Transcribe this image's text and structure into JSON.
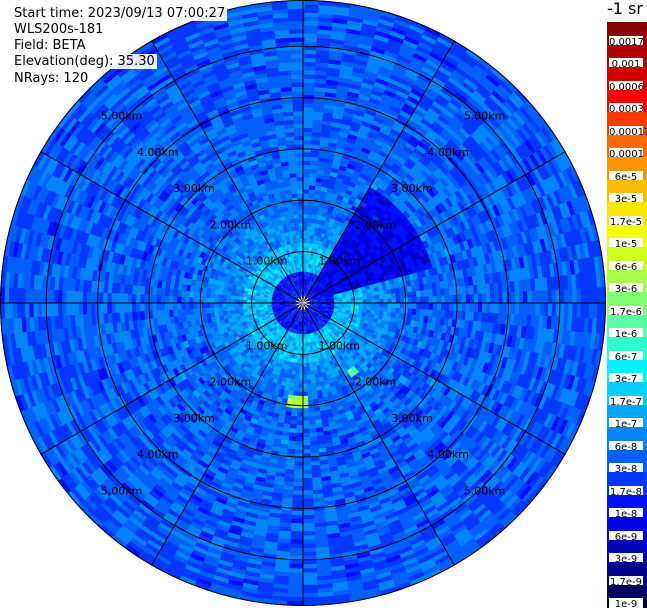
{
  "header": {
    "start_time": "Start time: 2023/09/13 07:00:27",
    "instrument": "WLS200s-181",
    "field": "Field: BETA",
    "elevation": "Elevation(deg): 35.30",
    "nrays": "NRays: 120"
  },
  "chart_data": {
    "type": "heatmap",
    "subtype": "polar-ppi",
    "rays": 120,
    "range_rings_km": [
      1,
      2,
      3,
      4,
      5
    ],
    "ring_labels": [
      "1.00km",
      "2.00km",
      "3.00km",
      "4.00km",
      "5.00km"
    ],
    "max_range_km": 5.9,
    "azimuth_spokes_deg": [
      0,
      30,
      60,
      90,
      120,
      150,
      180,
      210,
      240,
      270,
      300,
      330
    ],
    "colorbar": {
      "unit": "-1 sr",
      "levels": [
        {
          "value": "0.0017",
          "color": "#8b0000"
        },
        {
          "value": "0.001",
          "color": "#b00000"
        },
        {
          "value": "0.0006",
          "color": "#d40000"
        },
        {
          "value": "0.0003",
          "color": "#ff0000"
        },
        {
          "value": "0.00017",
          "color": "#ff3a00"
        },
        {
          "value": "0.0001",
          "color": "#ff6a00"
        },
        {
          "value": "6e-5",
          "color": "#ff9400"
        },
        {
          "value": "3e-5",
          "color": "#ffbd00"
        },
        {
          "value": "1.7e-5",
          "color": "#ffe400"
        },
        {
          "value": "1e-5",
          "color": "#f4ff00"
        },
        {
          "value": "6e-6",
          "color": "#d2ff1c"
        },
        {
          "value": "3e-6",
          "color": "#aaff46"
        },
        {
          "value": "1.7e-6",
          "color": "#82ff70"
        },
        {
          "value": "1e-6",
          "color": "#5affa0"
        },
        {
          "value": "6e-7",
          "color": "#2affd0"
        },
        {
          "value": "3e-7",
          "color": "#00f4ff"
        },
        {
          "value": "1.7e-7",
          "color": "#00d0ff"
        },
        {
          "value": "1e-7",
          "color": "#00a8ff"
        },
        {
          "value": "6e-8",
          "color": "#0084ff"
        },
        {
          "value": "3e-8",
          "color": "#0060ff"
        },
        {
          "value": "1.7e-8",
          "color": "#0038ff"
        },
        {
          "value": "1e-8",
          "color": "#0010ff"
        },
        {
          "value": "6e-9",
          "color": "#0000e6"
        },
        {
          "value": "3e-9",
          "color": "#0000b8"
        },
        {
          "value": "1.7e-9",
          "color": "#00008a"
        },
        {
          "value": "1e-9",
          "color": "#000060"
        }
      ]
    }
  }
}
